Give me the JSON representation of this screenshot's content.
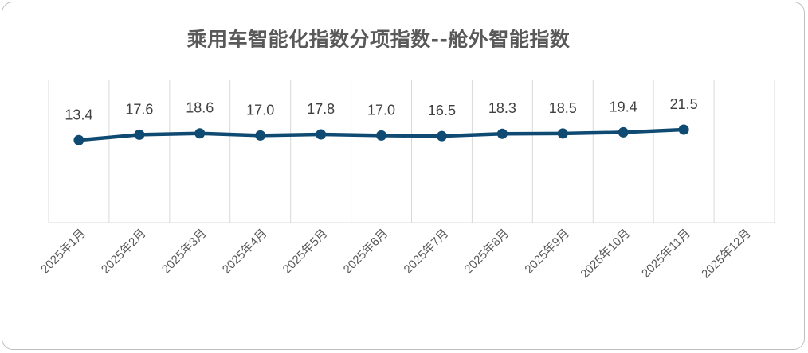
{
  "chart_data": {
    "type": "line",
    "title": "乘用车智能化指数分项指数--舱外智能指数",
    "categories": [
      "2025年1月",
      "2025年2月",
      "2025年3月",
      "2025年4月",
      "2025年5月",
      "2025年6月",
      "2025年7月",
      "2025年8月",
      "2025年9月",
      "2025年10月",
      "2025年11月",
      "2025年12月"
    ],
    "series": [
      {
        "values": [
          13.4,
          17.6,
          18.6,
          17.0,
          17.8,
          17.0,
          16.5,
          18.3,
          18.5,
          19.4,
          21.5,
          null
        ]
      }
    ],
    "value_labels": [
      "13.4",
      "17.6",
      "18.6",
      "17.0",
      "17.8",
      "17.0",
      "16.5",
      "18.3",
      "18.5",
      "19.4",
      "21.5"
    ],
    "ylim": [
      -50,
      60
    ],
    "grid": "vertical",
    "line_color": "#0f4a72",
    "legend": "none"
  }
}
